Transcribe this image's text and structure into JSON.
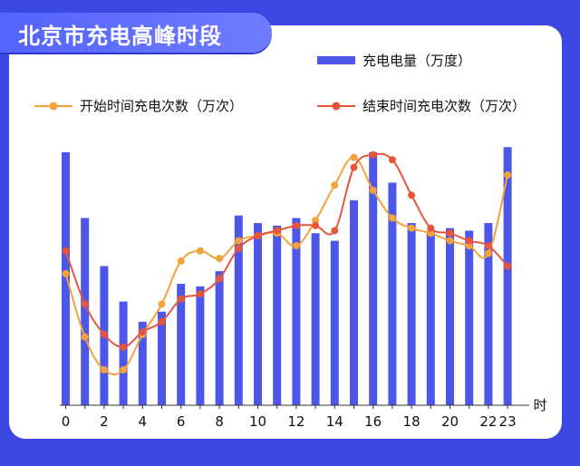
{
  "chart_data": {
    "type": "bar+line",
    "title": "北京市充电高峰时段",
    "xlabel": "时",
    "x_ticks": [
      "0",
      "2",
      "4",
      "6",
      "8",
      "10",
      "12",
      "14",
      "16",
      "18",
      "20",
      "22",
      "23"
    ],
    "categories": [
      0,
      1,
      2,
      3,
      4,
      5,
      6,
      7,
      8,
      9,
      10,
      11,
      12,
      13,
      14,
      15,
      16,
      17,
      18,
      19,
      20,
      21,
      22,
      23
    ],
    "series": [
      {
        "name": "充电电量（万度）",
        "type": "bar",
        "values": [
          100,
          74,
          55,
          41,
          33,
          37,
          48,
          47,
          53,
          75,
          72,
          71,
          74,
          68,
          65,
          81,
          100,
          88,
          72,
          69,
          70,
          69,
          72,
          102
        ]
      },
      {
        "name": "开始时间充电次数（万次）",
        "type": "line",
        "values": [
          52,
          27,
          14,
          14,
          28,
          40,
          57,
          61,
          58,
          65,
          67,
          68,
          63,
          73,
          87,
          98,
          85,
          74,
          70,
          68,
          65,
          63,
          60,
          91
        ]
      },
      {
        "name": "结束时间充电次数（万次）",
        "type": "line",
        "values": [
          61,
          40,
          28,
          23,
          29,
          33,
          42,
          44,
          50,
          62,
          67,
          69,
          71,
          71,
          69,
          94,
          99,
          97,
          83,
          70,
          68,
          65,
          63,
          55
        ]
      }
    ],
    "colors": {
      "bar": "#4c57e8",
      "start": "#f5a23a",
      "end": "#e8553a"
    },
    "ylim": [
      0,
      110
    ]
  }
}
